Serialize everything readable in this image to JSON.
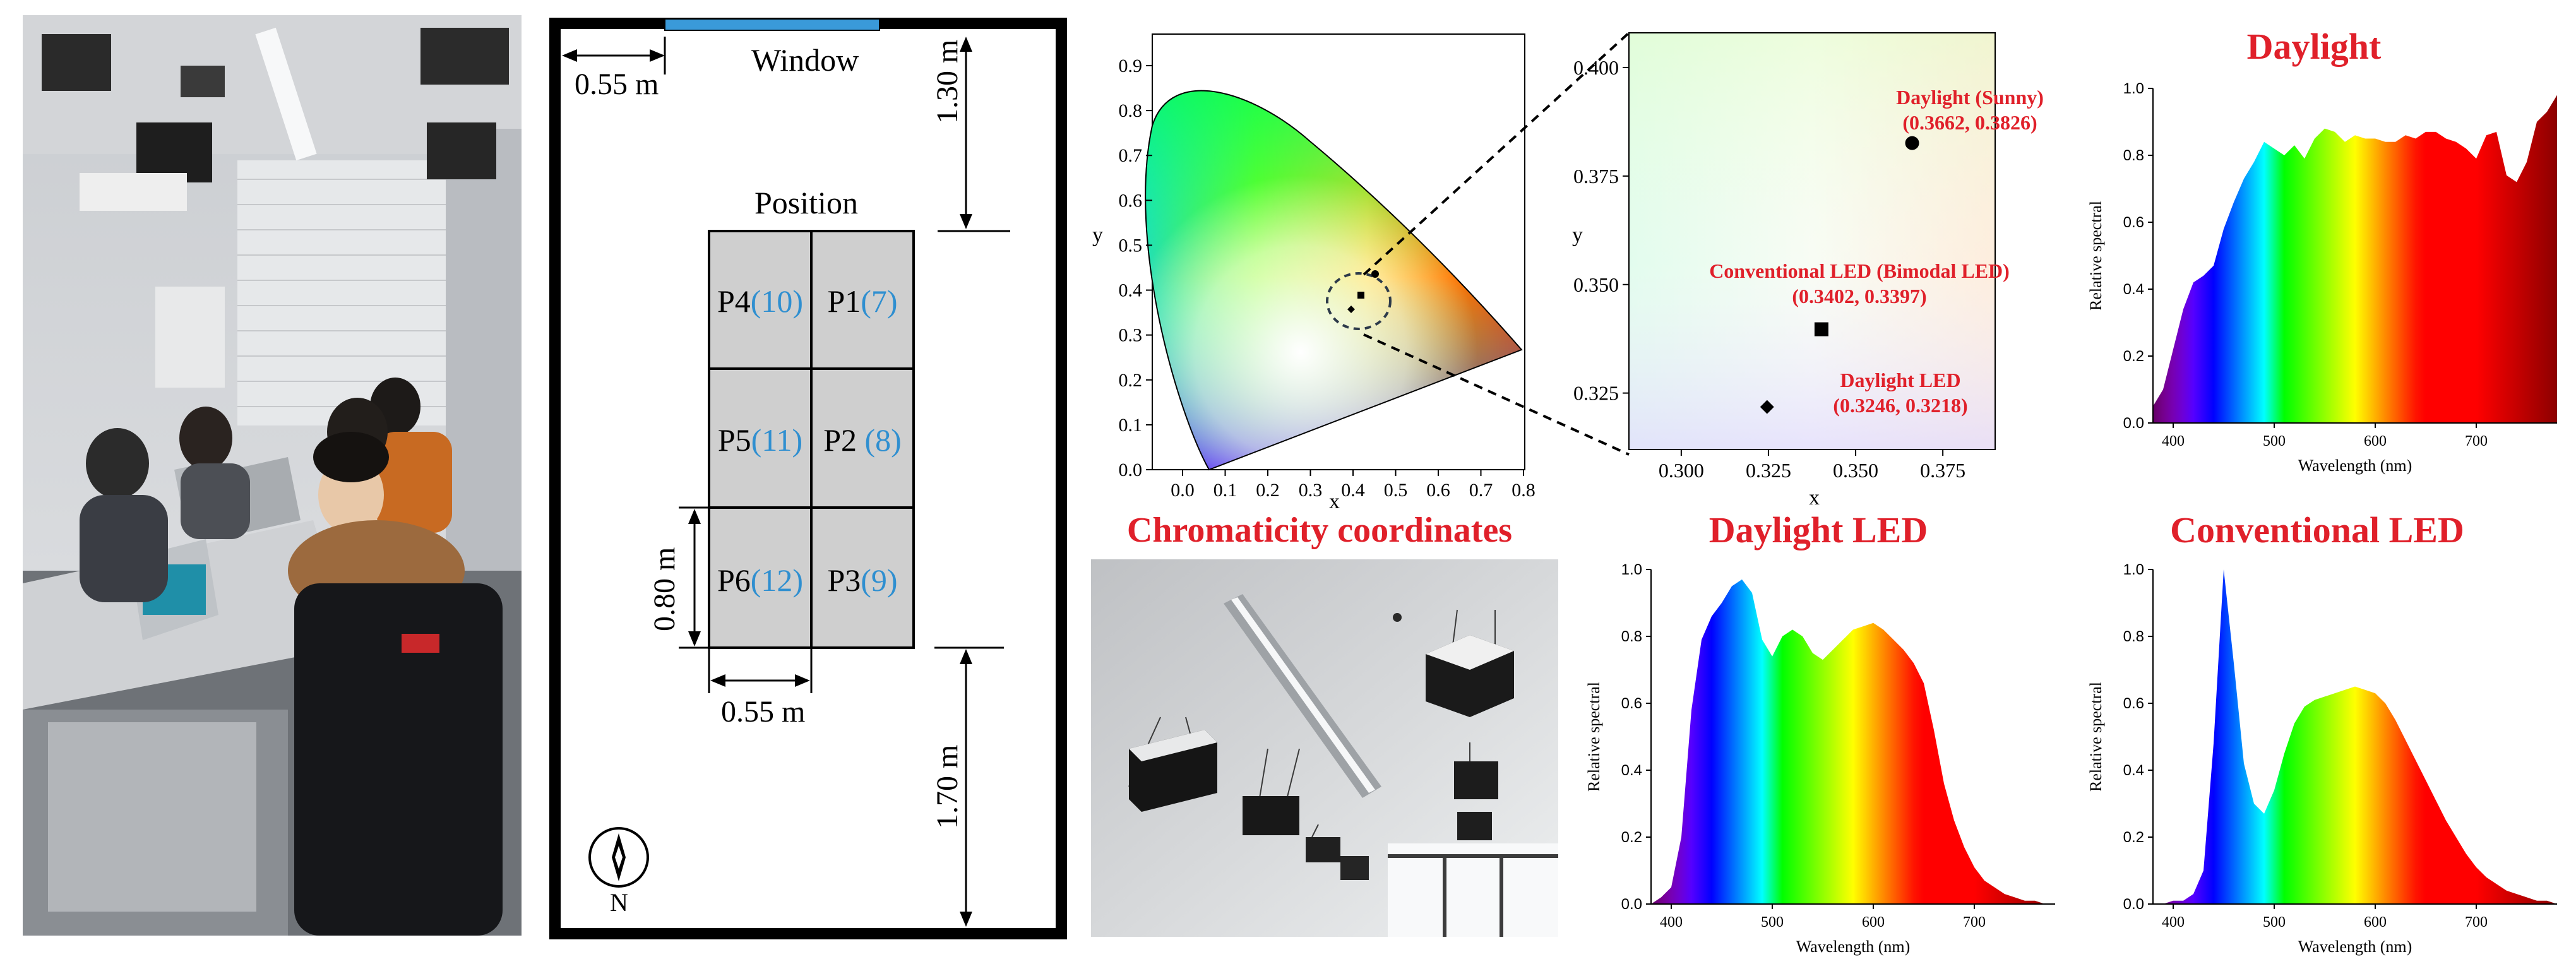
{
  "floorplan": {
    "window_label": "Window",
    "position_label": "Position",
    "dim_left_top": "0.55 m",
    "dim_top_gap": "1.30 m",
    "dim_row_height": "0.80 m",
    "dim_col_width": "0.55 m",
    "dim_bottom_gap": "1.70 m",
    "compass_label": "N",
    "cells": [
      {
        "name": "P4",
        "num": "(10)"
      },
      {
        "name": "P1",
        "num": "(7)"
      },
      {
        "name": "P5",
        "num": "(11)"
      },
      {
        "name": "P2 ",
        "num": "(8)"
      },
      {
        "name": "P6",
        "num": "(12)"
      },
      {
        "name": "P3",
        "num": "(9)"
      }
    ]
  },
  "cie": {
    "title": "Chromaticity coordinates",
    "xlabel": "x",
    "ylabel": "y",
    "xticks": [
      "0.0",
      "0.1",
      "0.2",
      "0.3",
      "0.4",
      "0.5",
      "0.6",
      "0.7",
      "0.8"
    ],
    "yticks": [
      "0.0",
      "0.1",
      "0.2",
      "0.3",
      "0.4",
      "0.5",
      "0.6",
      "0.7",
      "0.8",
      "0.9"
    ]
  },
  "zoom": {
    "xlabel": "x",
    "ylabel": "y",
    "xticks": [
      "0.300",
      "0.325",
      "0.350",
      "0.375"
    ],
    "yticks": [
      "0.325",
      "0.350",
      "0.375",
      "0.400"
    ]
  },
  "panels": {
    "daylight_title": "Daylight",
    "daylight_led_title": "Daylight LED",
    "conventional_led_title": "Conventional LED",
    "ylabel": "Relative spectral",
    "xlabel": "Wavelength (nm)",
    "xticks": [
      "400",
      "500",
      "600",
      "700"
    ],
    "yticks": [
      "0.0",
      "0.2",
      "0.4",
      "0.6",
      "0.8",
      "1.0"
    ]
  },
  "colors": {
    "label_red": "#e0202a",
    "label_blue": "#2f8fd0",
    "window_blue": "#3a9ad9"
  },
  "chart_data": [
    {
      "type": "scatter",
      "title": "",
      "xlabel": "x",
      "ylabel": "y",
      "xlim": [
        0.285,
        0.39
      ],
      "ylim": [
        0.312,
        0.408
      ],
      "points": [
        {
          "label": "Daylight (Sunny)",
          "coords": "(0.3662, 0.3826)",
          "x": 0.3662,
          "y": 0.3826,
          "marker": "circle"
        },
        {
          "label": "Conventional LED (Bimodal LED)",
          "coords": "(0.3402, 0.3397)",
          "x": 0.3402,
          "y": 0.3397,
          "marker": "square"
        },
        {
          "label": "Daylight LED",
          "coords": "(0.3246, 0.3218)",
          "x": 0.3246,
          "y": 0.3218,
          "marker": "diamond"
        }
      ]
    },
    {
      "type": "area",
      "title": "Daylight",
      "xlabel": "Wavelength (nm)",
      "ylabel": "Relative spectral",
      "xlim": [
        380,
        780
      ],
      "ylim": [
        0,
        1.0
      ],
      "x": [
        380,
        390,
        400,
        410,
        420,
        430,
        440,
        450,
        460,
        470,
        480,
        490,
        500,
        510,
        520,
        530,
        540,
        550,
        560,
        570,
        580,
        590,
        600,
        610,
        620,
        630,
        640,
        650,
        660,
        670,
        680,
        690,
        700,
        710,
        720,
        730,
        740,
        750,
        760,
        770,
        780
      ],
      "values": [
        0.05,
        0.1,
        0.22,
        0.34,
        0.42,
        0.44,
        0.47,
        0.58,
        0.66,
        0.73,
        0.78,
        0.84,
        0.82,
        0.8,
        0.83,
        0.79,
        0.85,
        0.88,
        0.87,
        0.84,
        0.86,
        0.85,
        0.85,
        0.84,
        0.84,
        0.86,
        0.85,
        0.87,
        0.87,
        0.85,
        0.84,
        0.82,
        0.79,
        0.86,
        0.87,
        0.74,
        0.72,
        0.78,
        0.9,
        0.93,
        0.98
      ]
    },
    {
      "type": "area",
      "title": "Daylight LED",
      "xlabel": "Wavelength (nm)",
      "ylabel": "Relative spectral",
      "xlim": [
        380,
        780
      ],
      "ylim": [
        0,
        1.0
      ],
      "x": [
        380,
        390,
        400,
        410,
        420,
        430,
        440,
        450,
        460,
        470,
        480,
        490,
        500,
        510,
        520,
        530,
        540,
        550,
        560,
        570,
        580,
        590,
        600,
        610,
        620,
        630,
        640,
        650,
        660,
        670,
        680,
        690,
        700,
        710,
        720,
        730,
        740,
        750,
        760,
        770,
        780
      ],
      "values": [
        0.0,
        0.02,
        0.05,
        0.2,
        0.58,
        0.79,
        0.86,
        0.9,
        0.95,
        0.97,
        0.93,
        0.79,
        0.74,
        0.8,
        0.82,
        0.8,
        0.75,
        0.73,
        0.76,
        0.79,
        0.82,
        0.83,
        0.84,
        0.82,
        0.79,
        0.76,
        0.72,
        0.66,
        0.52,
        0.36,
        0.25,
        0.17,
        0.11,
        0.07,
        0.05,
        0.03,
        0.02,
        0.01,
        0.01,
        0.0,
        0.0
      ]
    },
    {
      "type": "area",
      "title": "Conventional LED",
      "xlabel": "Wavelength (nm)",
      "ylabel": "Relative spectral",
      "xlim": [
        380,
        780
      ],
      "ylim": [
        0,
        1.0
      ],
      "x": [
        380,
        390,
        400,
        410,
        420,
        430,
        440,
        450,
        460,
        470,
        480,
        490,
        500,
        510,
        520,
        530,
        540,
        550,
        560,
        570,
        580,
        590,
        600,
        610,
        620,
        630,
        640,
        650,
        660,
        670,
        680,
        690,
        700,
        710,
        720,
        730,
        740,
        750,
        760,
        770,
        780
      ],
      "values": [
        0.0,
        0.0,
        0.01,
        0.01,
        0.03,
        0.1,
        0.48,
        1.0,
        0.72,
        0.42,
        0.3,
        0.27,
        0.34,
        0.45,
        0.54,
        0.59,
        0.61,
        0.62,
        0.63,
        0.64,
        0.65,
        0.64,
        0.63,
        0.6,
        0.55,
        0.49,
        0.43,
        0.37,
        0.31,
        0.25,
        0.2,
        0.15,
        0.11,
        0.08,
        0.06,
        0.04,
        0.03,
        0.02,
        0.01,
        0.01,
        0.0
      ]
    }
  ]
}
